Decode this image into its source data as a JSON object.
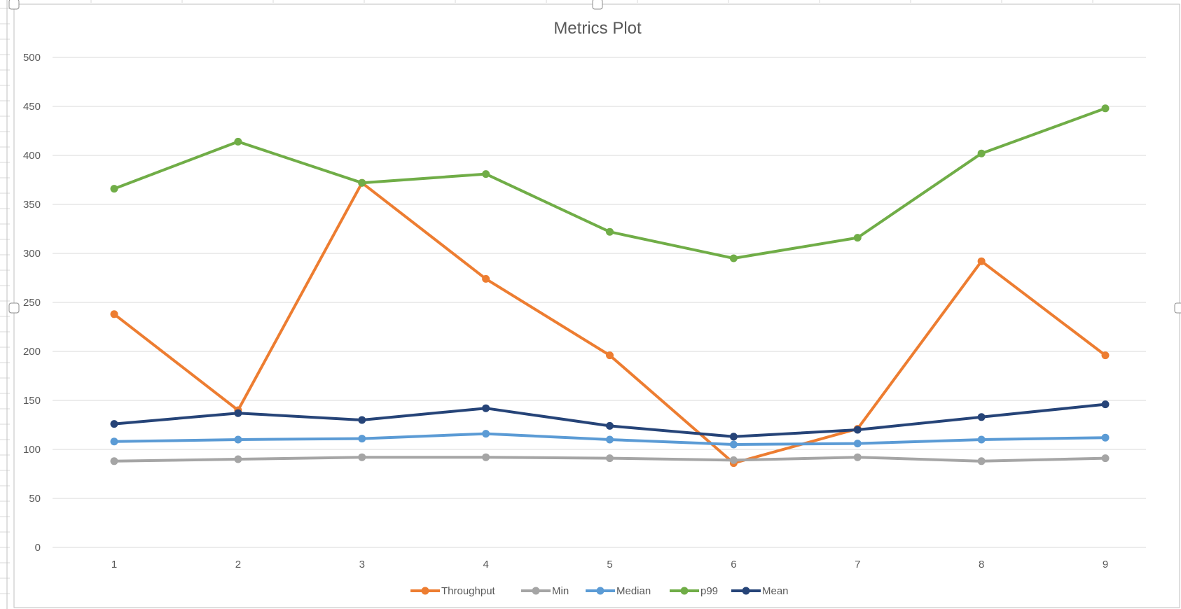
{
  "chart_data": {
    "type": "line",
    "title": "Metrics Plot",
    "xlabel": "",
    "ylabel": "",
    "categories": [
      "1",
      "2",
      "3",
      "4",
      "5",
      "6",
      "7",
      "8",
      "9"
    ],
    "ylim": [
      0,
      500
    ],
    "yticks": [
      "0",
      "50",
      "100",
      "150",
      "200",
      "250",
      "300",
      "350",
      "400",
      "450",
      "500"
    ],
    "grid": true,
    "legend_position": "bottom",
    "series": [
      {
        "name": "Throughput",
        "color": "#ED7D31",
        "values": [
          238,
          140,
          372,
          274,
          196,
          86,
          121,
          292,
          196
        ]
      },
      {
        "name": "Min",
        "color": "#A5A5A5",
        "values": [
          88,
          90,
          92,
          92,
          91,
          89,
          92,
          88,
          91
        ]
      },
      {
        "name": "Median",
        "color": "#5B9BD5",
        "values": [
          108,
          110,
          111,
          116,
          110,
          105,
          106,
          110,
          112
        ]
      },
      {
        "name": "p99",
        "color": "#70AD47",
        "values": [
          366,
          414,
          372,
          381,
          322,
          295,
          316,
          402,
          448
        ]
      },
      {
        "name": "Mean",
        "color": "#264478",
        "values": [
          126,
          137,
          130,
          142,
          124,
          113,
          120,
          133,
          146
        ]
      }
    ]
  }
}
